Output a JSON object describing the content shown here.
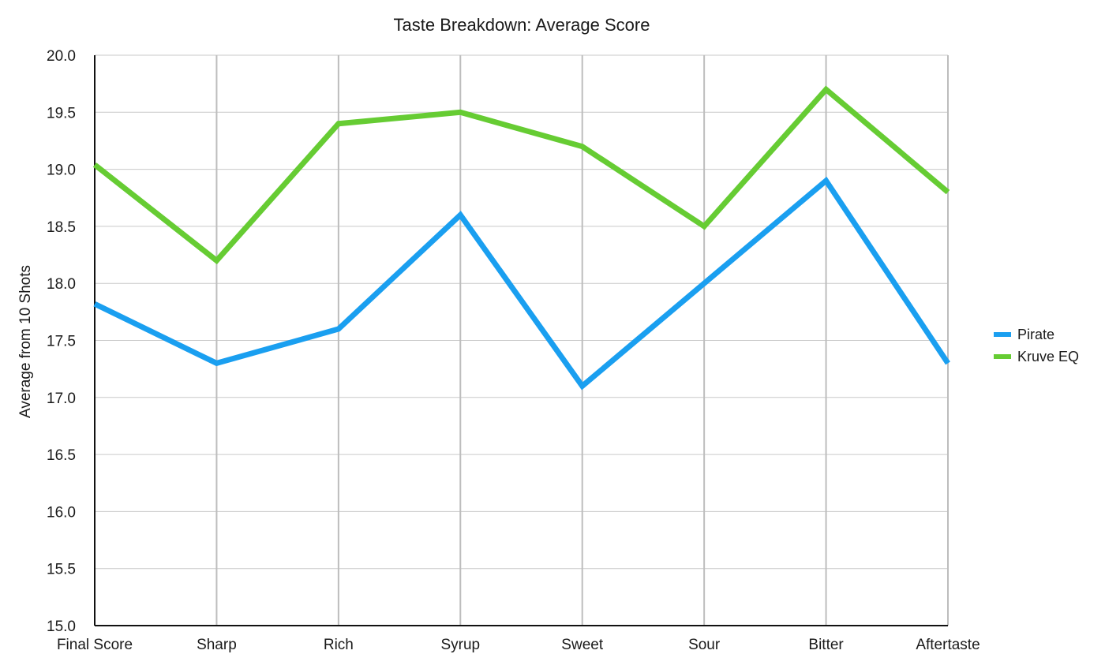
{
  "chart_data": {
    "type": "line",
    "title": "Taste Breakdown: Average Score",
    "xlabel": "",
    "ylabel": "Average from 10 Shots",
    "ylim": [
      15.0,
      20.0
    ],
    "yticks": [
      "15.0",
      "15.5",
      "16.0",
      "16.5",
      "17.0",
      "17.5",
      "18.0",
      "18.5",
      "19.0",
      "19.5",
      "20.0"
    ],
    "categories": [
      "Final Score",
      "Sharp",
      "Rich",
      "Syrup",
      "Sweet",
      "Sour",
      "Bitter",
      "Aftertaste"
    ],
    "grid": true,
    "legend_position": "right",
    "series": [
      {
        "name": "Pirate",
        "color": "#1a9ff0",
        "values": [
          17.82,
          17.3,
          17.6,
          18.6,
          17.1,
          18.0,
          18.9,
          17.3
        ]
      },
      {
        "name": "Kruve EQ",
        "color": "#66cc33",
        "values": [
          19.04,
          18.2,
          19.4,
          19.5,
          19.2,
          18.5,
          19.7,
          18.8
        ]
      }
    ]
  }
}
